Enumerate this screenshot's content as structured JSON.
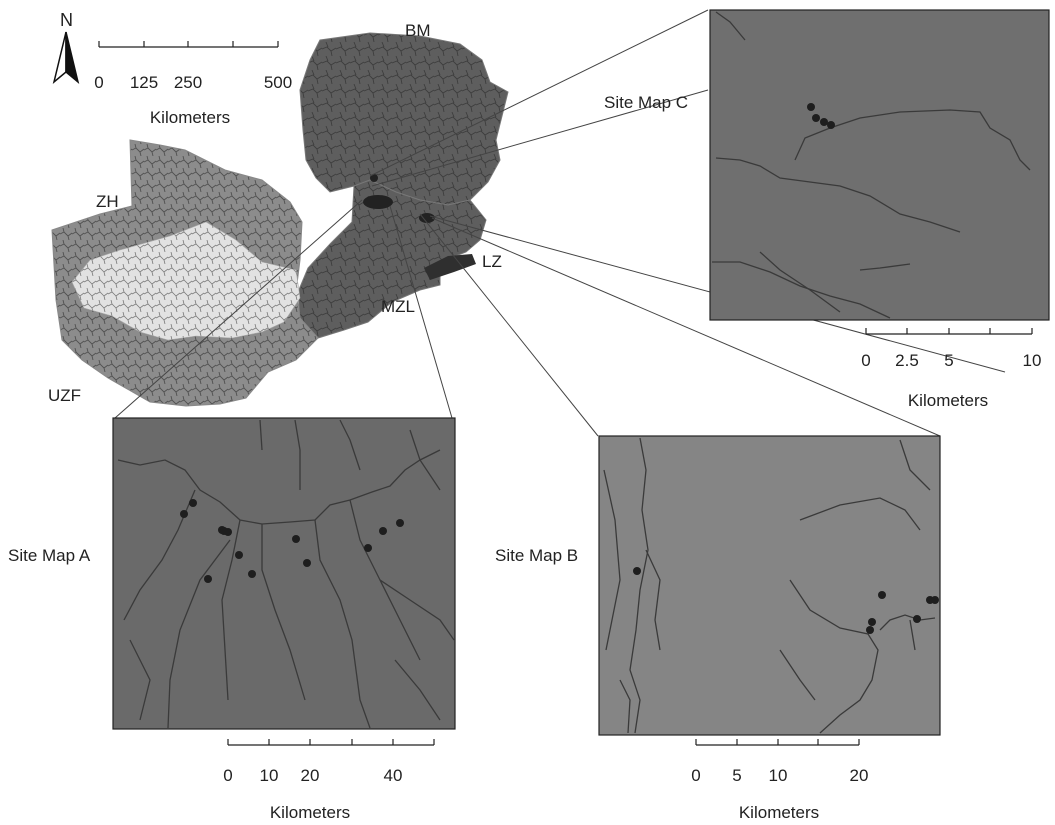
{
  "north_arrow": {
    "label": "N"
  },
  "main_scale": {
    "ticks": [
      "0",
      "125",
      "250",
      "500"
    ],
    "tick_values": [
      0,
      125,
      250,
      500
    ],
    "unit": "Kilometers"
  },
  "regions": [
    {
      "code": "BM"
    },
    {
      "code": "ZH"
    },
    {
      "code": "LZ"
    },
    {
      "code": "MZL"
    },
    {
      "code": "UZF"
    }
  ],
  "site_maps": [
    {
      "title": "Site Map A",
      "scale": {
        "ticks": [
          "0",
          "10",
          "20",
          "40"
        ],
        "tick_values": [
          0,
          10,
          20,
          40
        ],
        "unit": "Kilometers"
      },
      "site_count": 13
    },
    {
      "title": "Site Map B",
      "scale": {
        "ticks": [
          "0",
          "5",
          "10",
          "20"
        ],
        "tick_values": [
          0,
          5,
          10,
          20
        ],
        "unit": "Kilometers"
      },
      "site_count": 7
    },
    {
      "title": "Site Map C",
      "scale": {
        "ticks": [
          "0",
          "2.5",
          "5",
          "10"
        ],
        "tick_values": [
          0,
          2.5,
          5,
          10
        ],
        "unit": "Kilometers"
      },
      "site_count": 4
    }
  ],
  "colors": {
    "panel_fill_dark": "#6b6b6b",
    "panel_fill_light": "#858585",
    "river": "#3a3a3a",
    "site_point": "#1e1e1e",
    "region_dark": "#5c5c5c",
    "region_mid": "#8f8f8f",
    "region_light": "#d8d8d8"
  }
}
